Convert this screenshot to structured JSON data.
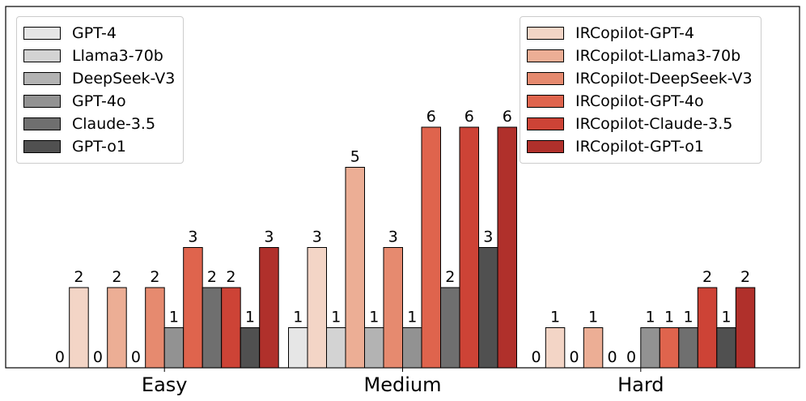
{
  "chart_data": {
    "type": "bar",
    "categories": [
      "Easy",
      "Medium",
      "Hard"
    ],
    "series": [
      {
        "name": "GPT-4",
        "color": "#e6e6e6",
        "values": [
          0,
          1,
          0
        ]
      },
      {
        "name": "IRCopilot-GPT-4",
        "color": "#f3d5c6",
        "values": [
          2,
          3,
          1
        ]
      },
      {
        "name": "Llama3-70b",
        "color": "#d3d3d3",
        "values": [
          0,
          1,
          0
        ]
      },
      {
        "name": "IRCopilot-Llama3-70b",
        "color": "#ecae95",
        "values": [
          2,
          5,
          1
        ]
      },
      {
        "name": "DeepSeek-V3",
        "color": "#b3b3b3",
        "values": [
          0,
          1,
          0
        ]
      },
      {
        "name": "IRCopilot-DeepSeek-V3",
        "color": "#e68a6f",
        "values": [
          2,
          3,
          0
        ]
      },
      {
        "name": "GPT-4o",
        "color": "#929292",
        "values": [
          1,
          1,
          1
        ]
      },
      {
        "name": "IRCopilot-GPT-4o",
        "color": "#df644d",
        "values": [
          3,
          6,
          1
        ]
      },
      {
        "name": "Claude-3.5",
        "color": "#6f6f6f",
        "values": [
          2,
          2,
          1
        ]
      },
      {
        "name": "IRCopilot-Claude-3.5",
        "color": "#cd4336",
        "values": [
          2,
          6,
          2
        ]
      },
      {
        "name": "GPT-o1",
        "color": "#505050",
        "values": [
          1,
          3,
          1
        ]
      },
      {
        "name": "IRCopilot-GPT-o1",
        "color": "#b0302b",
        "values": [
          3,
          6,
          2
        ]
      }
    ],
    "ylim": [
      0,
      9
    ],
    "xlabel": "",
    "ylabel": "",
    "grid": false,
    "legends": [
      {
        "placement": "top-left",
        "entries": [
          "GPT-4",
          "Llama3-70b",
          "DeepSeek-V3",
          "GPT-4o",
          "Claude-3.5",
          "GPT-o1"
        ]
      },
      {
        "placement": "top-right",
        "entries": [
          "IRCopilot-GPT-4",
          "IRCopilot-Llama3-70b",
          "IRCopilot-DeepSeek-V3",
          "IRCopilot-GPT-4o",
          "IRCopilot-Claude-3.5",
          "IRCopilot-GPT-o1"
        ]
      }
    ]
  }
}
